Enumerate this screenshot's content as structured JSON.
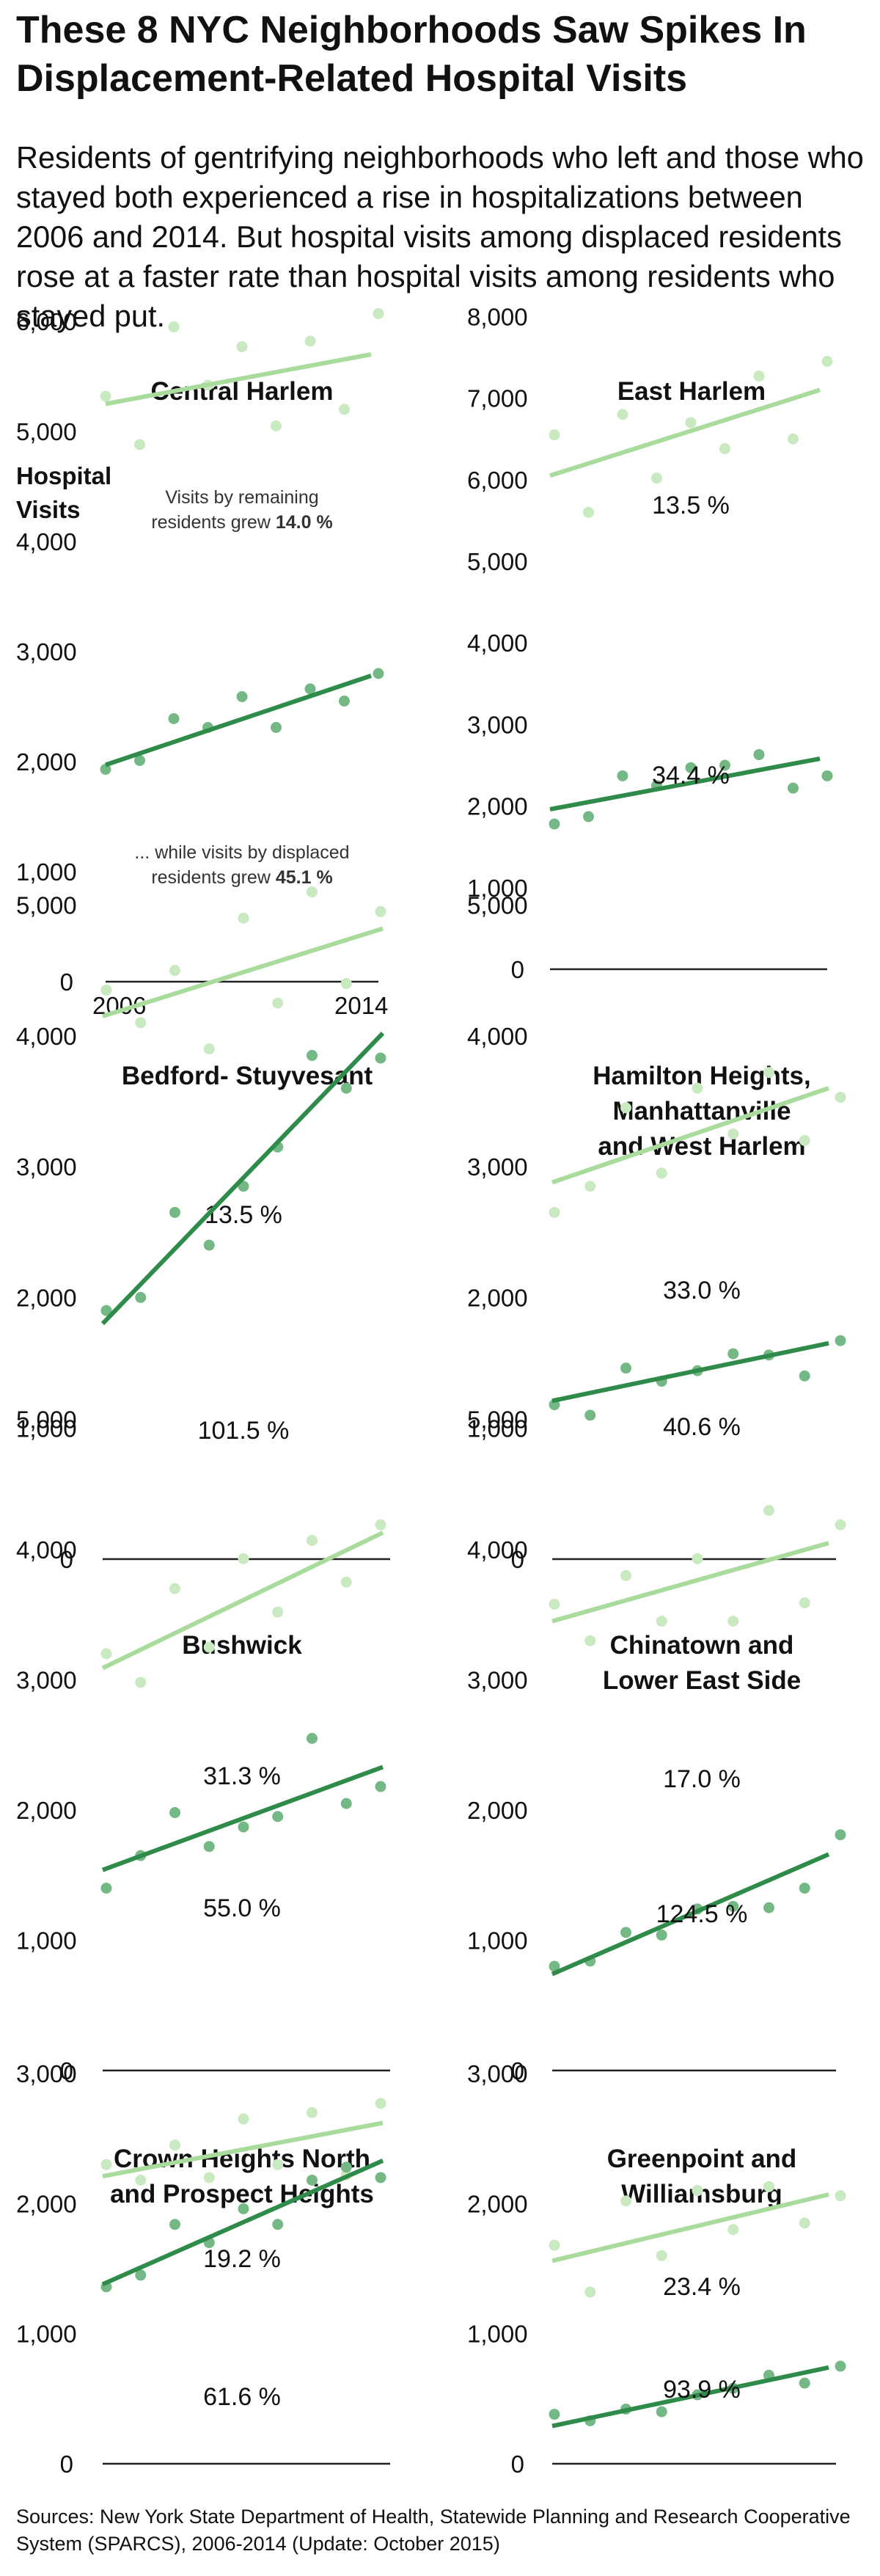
{
  "title": "These 8 NYC Neighborhoods Saw Spikes In Displacement-Related Hospital Visits",
  "subtitle": "Residents of gentrifying neighborhoods who left and those who stayed both experienced a rise in hospitalizations between 2006 and 2014. But hospital visits among displaced residents rose at a faster rate than hospital visits among residents who stayed put.",
  "source": "Sources: New York State Department of Health, Statewide Planning and Research Cooperative System (SPARCS), 2006-2014 (Update: October 2015)",
  "colors": {
    "remaining": "#a8db9c",
    "remaining_dot": "#c9e9c0",
    "displaced": "#2e8b4a",
    "displaced_dot": "#74b985",
    "axis": "#222222",
    "text": "#111111"
  },
  "chart_data": [
    {
      "type": "scatter",
      "title": "Central Harlem",
      "ylabel": "Hospital Visits",
      "x": [
        2006,
        2007,
        2008,
        2009,
        2010,
        2011,
        2012,
        2013,
        2014
      ],
      "xticks": [
        "2006",
        "2014"
      ],
      "ylim": [
        0,
        6000
      ],
      "yticks": [
        "0",
        "1,000",
        "2,000",
        "3,000",
        "4,000",
        "5,000",
        "6,000"
      ],
      "series": [
        {
          "values": [
            5320,
            4880,
            5950,
            5420,
            5770,
            5050,
            5820,
            5200,
            6070
          ],
          "trend": [
            5250,
            5700
          ],
          "growth": "14.0 %"
        },
        {
          "values": [
            1930,
            2010,
            2390,
            2310,
            2590,
            2310,
            2660,
            2550,
            2800
          ],
          "trend": [
            1970,
            2780
          ],
          "growth": "45.1 %"
        }
      ],
      "annotations": {
        "remaining": [
          "Visits by remaining",
          "residents grew",
          "14.0 %"
        ],
        "displaced": [
          "... while visits by displaced",
          "residents grew",
          "45.1 %"
        ]
      }
    },
    {
      "type": "scatter",
      "title": "East Harlem",
      "x": [
        2006,
        2007,
        2008,
        2009,
        2010,
        2011,
        2012,
        2013,
        2014
      ],
      "ylim": [
        0,
        8000
      ],
      "yticks": [
        "0",
        "1,000",
        "2,000",
        "3,000",
        "4,000",
        "5,000",
        "6,000",
        "7,000",
        "8,000"
      ],
      "series": [
        {
          "values": [
            6550,
            5600,
            6800,
            6020,
            6700,
            6380,
            7270,
            6500,
            7450
          ],
          "trend": [
            6050,
            7100
          ],
          "label": "13.5 %"
        },
        {
          "values": [
            1780,
            1870,
            2370,
            2250,
            2470,
            2500,
            2630,
            2220,
            2370
          ],
          "trend": [
            1960,
            2580
          ],
          "label": "34.4 %"
        }
      ]
    },
    {
      "type": "scatter",
      "title": "Bedford- Stuyvesant",
      "x": [
        2006,
        2007,
        2008,
        2009,
        2010,
        2011,
        2012,
        2013,
        2014
      ],
      "ylim": [
        0,
        5000
      ],
      "yticks": [
        "0",
        "1,000",
        "2,000",
        "3,000",
        "4,000",
        "5,000"
      ],
      "series": [
        {
          "values": [
            4350,
            4100,
            4500,
            3900,
            4900,
            4250,
            5100,
            4400,
            4950
          ],
          "trend": [
            4150,
            4820
          ],
          "label": "13.5 %"
        },
        {
          "values": [
            1900,
            2000,
            2650,
            2400,
            2850,
            3150,
            3850,
            3600,
            3830
          ],
          "trend": [
            1800,
            4020
          ],
          "label": "101.5 %"
        }
      ]
    },
    {
      "type": "scatter",
      "title": "Hamilton Heights, Manhattanville and West Harlem",
      "x": [
        2006,
        2007,
        2008,
        2009,
        2010,
        2011,
        2012,
        2013,
        2014
      ],
      "ylim": [
        0,
        5000
      ],
      "yticks": [
        "0",
        "1,000",
        "2,000",
        "3,000",
        "4,000",
        "5,000"
      ],
      "series": [
        {
          "values": [
            2650,
            2850,
            3450,
            2950,
            3600,
            3250,
            3720,
            3200,
            3530
          ],
          "trend": [
            2880,
            3600
          ],
          "label": "33.0 %"
        },
        {
          "values": [
            1180,
            1100,
            1460,
            1360,
            1440,
            1570,
            1560,
            1400,
            1670
          ],
          "trend": [
            1210,
            1650
          ],
          "label": "40.6 %"
        }
      ]
    },
    {
      "type": "scatter",
      "title": "Bushwick",
      "x": [
        2006,
        2007,
        2008,
        2009,
        2010,
        2011,
        2012,
        2013,
        2014
      ],
      "ylim": [
        0,
        5000
      ],
      "yticks": [
        "0",
        "1,000",
        "2,000",
        "3,000",
        "4,000",
        "5,000"
      ],
      "series": [
        {
          "values": [
            3200,
            2980,
            3700,
            3250,
            3930,
            3520,
            4070,
            3750,
            4190
          ],
          "trend": [
            3090,
            4130
          ],
          "label": "31.3 %"
        },
        {
          "values": [
            1400,
            1650,
            1980,
            1720,
            1870,
            1950,
            2550,
            2050,
            2180
          ],
          "trend": [
            1540,
            2330
          ],
          "label": "55.0 %"
        }
      ]
    },
    {
      "type": "scatter",
      "title": "Chinatown and Lower East Side",
      "x": [
        2006,
        2007,
        2008,
        2009,
        2010,
        2011,
        2012,
        2013,
        2014
      ],
      "ylim": [
        0,
        5000
      ],
      "yticks": [
        "0",
        "1,000",
        "2,000",
        "3,000",
        "4,000",
        "5,000"
      ],
      "series": [
        {
          "values": [
            3580,
            3300,
            3800,
            3450,
            3930,
            3450,
            4300,
            3590,
            4190
          ],
          "trend": [
            3450,
            4050
          ],
          "label": "17.0 %"
        },
        {
          "values": [
            800,
            840,
            1060,
            1040,
            1240,
            1260,
            1250,
            1400,
            1810
          ],
          "trend": [
            740,
            1660
          ],
          "label": "124.5 %"
        }
      ]
    },
    {
      "type": "scatter",
      "title": "Crown Heights North and Prospect Heights",
      "x": [
        2006,
        2007,
        2008,
        2009,
        2010,
        2011,
        2012,
        2013,
        2014
      ],
      "ylim": [
        0,
        3000
      ],
      "yticks": [
        "0",
        "1,000",
        "2,000",
        "3,000"
      ],
      "series": [
        {
          "values": [
            2300,
            2180,
            2450,
            2200,
            2650,
            2300,
            2700,
            2220,
            2770
          ],
          "trend": [
            2210,
            2620
          ],
          "label": "19.2 %"
        },
        {
          "values": [
            1360,
            1450,
            1840,
            1700,
            1960,
            1840,
            2180,
            2280,
            2200
          ],
          "trend": [
            1380,
            2330
          ],
          "label": "61.6 %"
        }
      ]
    },
    {
      "type": "scatter",
      "title": "Greenpoint and Williamsburg",
      "x": [
        2006,
        2007,
        2008,
        2009,
        2010,
        2011,
        2012,
        2013,
        2014
      ],
      "ylim": [
        0,
        3000
      ],
      "yticks": [
        "0",
        "1,000",
        "2,000",
        "3,000"
      ],
      "series": [
        {
          "values": [
            1680,
            1320,
            2020,
            1600,
            2100,
            1800,
            2130,
            1850,
            2060
          ],
          "trend": [
            1560,
            2070
          ],
          "label": "23.4 %"
        },
        {
          "values": [
            380,
            330,
            420,
            400,
            530,
            580,
            680,
            620,
            750
          ],
          "trend": [
            290,
            740
          ],
          "label": "93.9 %"
        }
      ]
    }
  ]
}
